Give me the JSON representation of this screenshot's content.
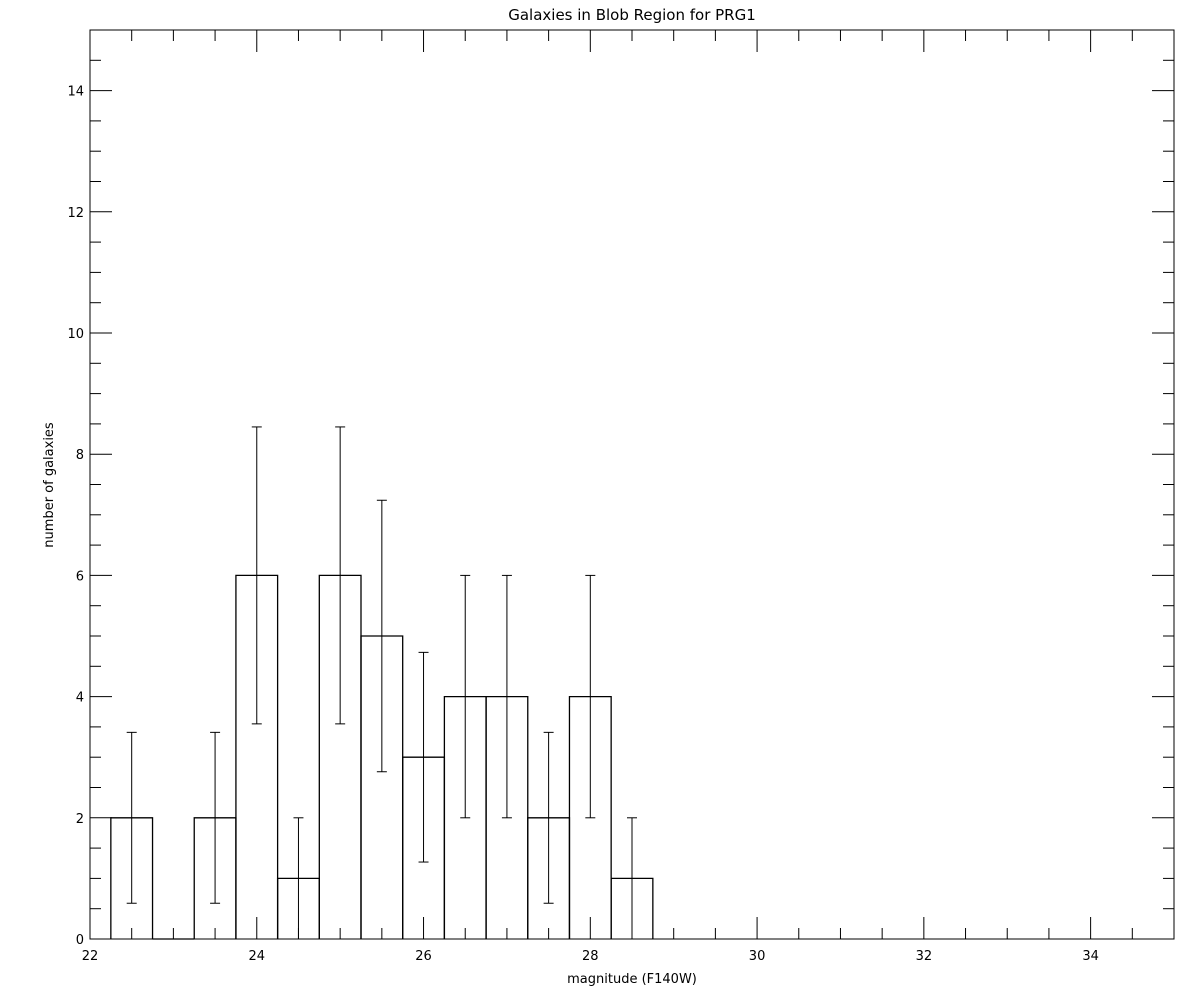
{
  "chart_data": {
    "type": "bar",
    "title": "Galaxies in Blob Region for PRG1",
    "xlabel": "magnitude (F140W)",
    "ylabel": "number of galaxies",
    "xlim": [
      22,
      35
    ],
    "ylim": [
      0,
      15
    ],
    "x_major_ticks": [
      22,
      24,
      26,
      28,
      30,
      32,
      34
    ],
    "x_minor_step": 0.5,
    "y_major_ticks": [
      0,
      2,
      4,
      6,
      8,
      10,
      12,
      14
    ],
    "y_minor_step": 0.5,
    "x_tick_labels": [
      "22",
      "24",
      "26",
      "28",
      "30",
      "32",
      "34"
    ],
    "y_tick_labels": [
      "0",
      "2",
      "4",
      "6",
      "8",
      "10",
      "12",
      "14"
    ],
    "bin_width": 0.5,
    "bin_centers": [
      22.5,
      23.0,
      23.5,
      24.0,
      24.5,
      25.0,
      25.5,
      26.0,
      26.5,
      27.0,
      27.5,
      28.0,
      28.5
    ],
    "counts": [
      2,
      0,
      2,
      6,
      1,
      6,
      5,
      3,
      4,
      4,
      2,
      4,
      1
    ],
    "error_bars": [
      {
        "x": 22.5,
        "low": 0.59,
        "high": 3.41
      },
      {
        "x": 23.5,
        "low": 0.59,
        "high": 3.41
      },
      {
        "x": 24.0,
        "low": 3.55,
        "high": 8.45
      },
      {
        "x": 24.5,
        "low": 0.0,
        "high": 2.0
      },
      {
        "x": 25.0,
        "low": 3.55,
        "high": 8.45
      },
      {
        "x": 25.5,
        "low": 2.76,
        "high": 7.24
      },
      {
        "x": 26.0,
        "low": 1.27,
        "high": 4.73
      },
      {
        "x": 26.5,
        "low": 2.0,
        "high": 6.0
      },
      {
        "x": 27.0,
        "low": 2.0,
        "high": 6.0
      },
      {
        "x": 27.5,
        "low": 0.59,
        "high": 3.41
      },
      {
        "x": 28.0,
        "low": 2.0,
        "high": 6.0
      },
      {
        "x": 28.5,
        "low": 0.0,
        "high": 2.0
      }
    ],
    "grid": false,
    "legend": "none"
  }
}
